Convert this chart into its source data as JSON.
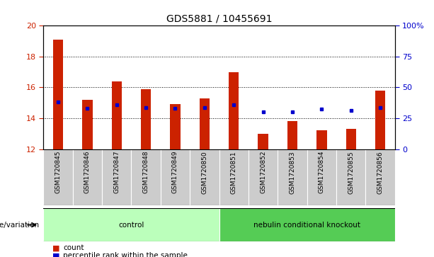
{
  "title": "GDS5881 / 10455691",
  "samples": [
    "GSM1720845",
    "GSM1720846",
    "GSM1720847",
    "GSM1720848",
    "GSM1720849",
    "GSM1720850",
    "GSM1720851",
    "GSM1720852",
    "GSM1720853",
    "GSM1720854",
    "GSM1720855",
    "GSM1720856"
  ],
  "bar_values": [
    19.1,
    15.2,
    16.4,
    15.9,
    14.9,
    15.3,
    17.0,
    13.0,
    13.8,
    13.2,
    13.3,
    15.8
  ],
  "bar_base": 12,
  "percentile_values": [
    15.05,
    14.65,
    14.85,
    14.7,
    14.65,
    14.7,
    14.85,
    14.4,
    14.4,
    14.6,
    14.5,
    14.7
  ],
  "ylim": [
    12,
    20
  ],
  "yticks_left": [
    12,
    14,
    16,
    18,
    20
  ],
  "ytick_right_labels": [
    "0",
    "25",
    "50",
    "75",
    "100%"
  ],
  "bar_color": "#cc2200",
  "percentile_color": "#0000cc",
  "bg_color": "#ffffff",
  "plot_bg": "#ffffff",
  "left_tick_color": "#cc2200",
  "right_tick_color": "#0000cc",
  "group_labels": [
    "control",
    "nebulin conditional knockout"
  ],
  "group_ranges": [
    [
      0,
      5
    ],
    [
      6,
      11
    ]
  ],
  "group_color_light": "#bbffbb",
  "group_color_dark": "#55cc55",
  "sample_bg": "#cccccc",
  "genotype_label": "genotype/variation",
  "legend_items": [
    "count",
    "percentile rank within the sample"
  ],
  "legend_colors": [
    "#cc2200",
    "#0000cc"
  ],
  "bar_width": 0.35
}
